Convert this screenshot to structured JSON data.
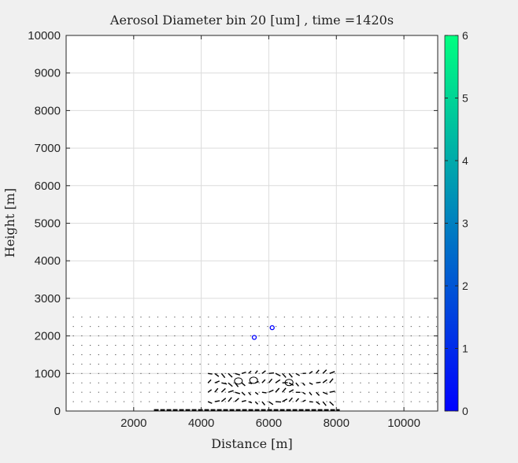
{
  "chart_data": {
    "type": "scatter",
    "title": "Aerosol Diameter bin 20 [um] , time =1420s",
    "xlabel": "Distance [m]",
    "ylabel": "Height [m]",
    "xlim": [
      0,
      11000
    ],
    "ylim": [
      0,
      10000
    ],
    "xticks": [
      2000,
      4000,
      6000,
      8000,
      10000
    ],
    "yticks": [
      0,
      1000,
      2000,
      3000,
      4000,
      5000,
      6000,
      7000,
      8000,
      9000,
      10000
    ],
    "grid": true,
    "background": "#ffffff",
    "points": [
      {
        "x": 5570,
        "y": 1960,
        "value": 1
      },
      {
        "x": 6100,
        "y": 2220,
        "value": 1
      }
    ],
    "colorbar": {
      "range": [
        0,
        6
      ],
      "ticks": [
        0,
        1,
        2,
        3,
        4,
        5,
        6
      ],
      "colors": [
        "#0000ff",
        "#00ff80"
      ],
      "position": "right"
    },
    "overlays": {
      "vector_field": true,
      "circulation_contours": [
        {
          "x": 5100,
          "y": 800
        },
        {
          "x": 5550,
          "y": 820
        },
        {
          "x": 6600,
          "y": 760
        }
      ]
    }
  }
}
